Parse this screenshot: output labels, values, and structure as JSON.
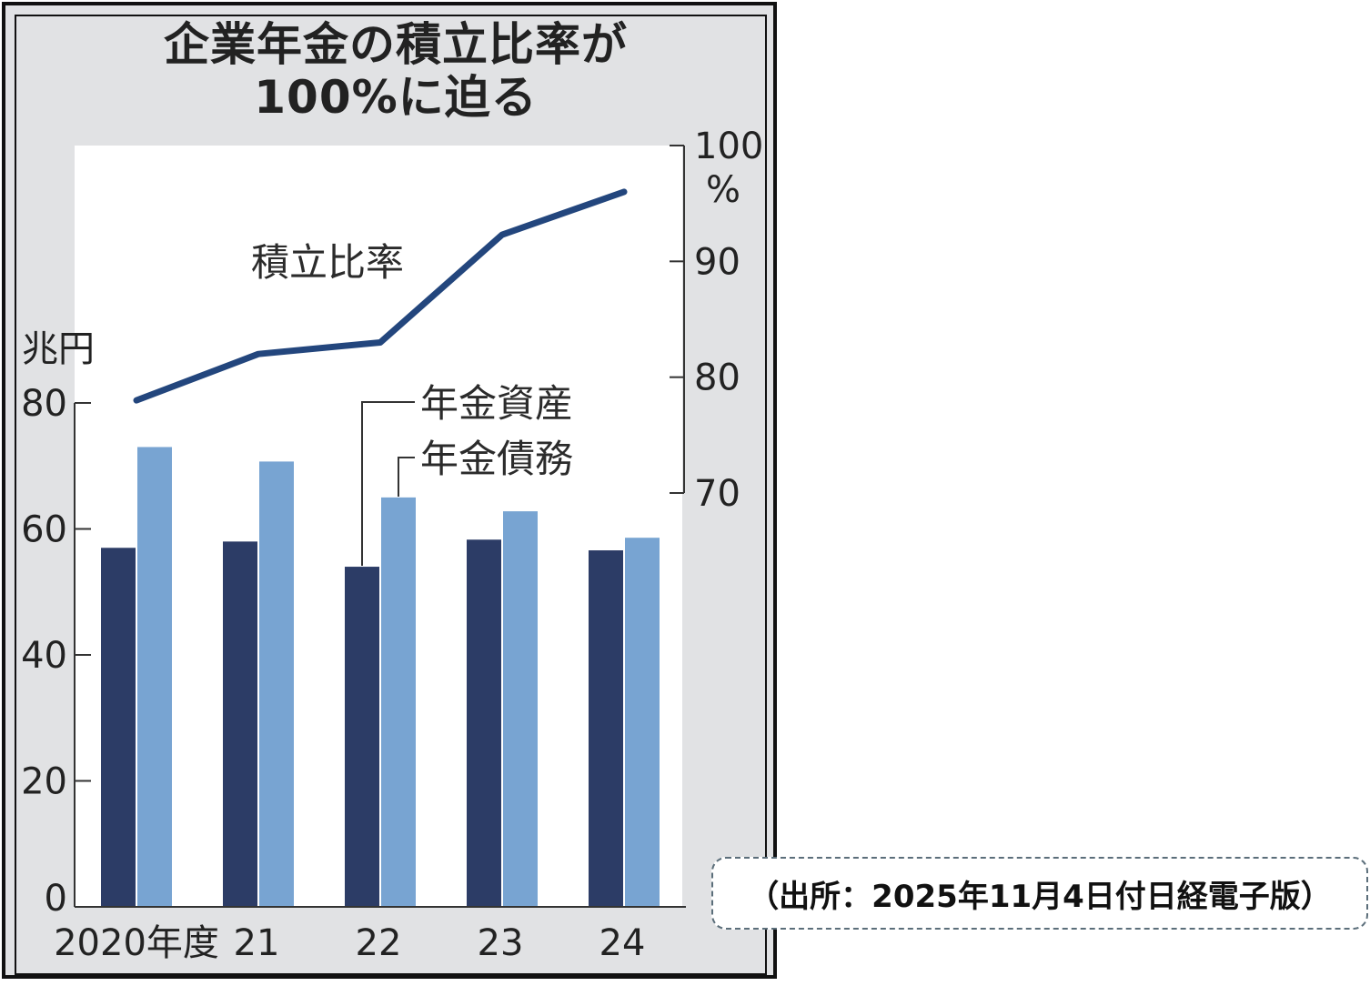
{
  "chart_data": {
    "title_lines": [
      "企業年金の積立比率が",
      "100%に迫る"
    ],
    "type": "bar",
    "categories": [
      "2020年度",
      "21",
      "22",
      "23",
      "24"
    ],
    "left_axis": {
      "unit": "兆円",
      "ticks": [
        "0",
        "20",
        "40",
        "60",
        "80"
      ],
      "range": [
        0,
        80
      ]
    },
    "right_axis": {
      "unit": "%",
      "ticks": [
        "70",
        "80",
        "90",
        "100"
      ],
      "range": [
        70,
        100
      ]
    },
    "series": [
      {
        "name": "年金資産",
        "type": "bar",
        "axis": "left",
        "color": "#2c3c66",
        "values": [
          57,
          58,
          54,
          58.3,
          56.6
        ]
      },
      {
        "name": "年金債務",
        "type": "bar",
        "axis": "left",
        "color": "#78a4d2",
        "values": [
          73,
          70.7,
          65,
          62.8,
          58.6
        ]
      },
      {
        "name": "積立比率",
        "type": "line",
        "axis": "right",
        "color": "#23467d",
        "values": [
          78,
          82,
          83,
          92.3,
          96
        ]
      }
    ],
    "legend_placement": "annotated"
  },
  "source_note": "（出所：2025年11月4日付日経電子版）"
}
